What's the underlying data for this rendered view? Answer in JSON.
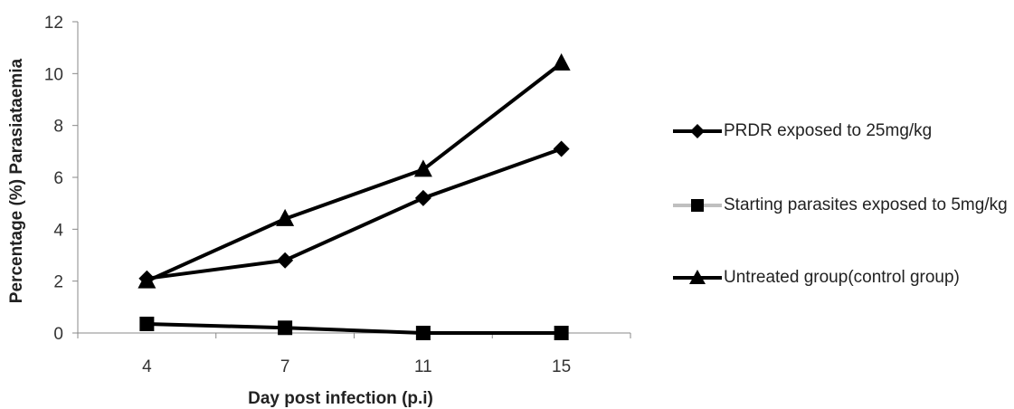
{
  "chart_data": {
    "type": "line",
    "title": "",
    "xlabel": "Day post infection (p.i)",
    "ylabel": "Percentage (%) Parasiataemia",
    "categories": [
      "4",
      "7",
      "11",
      "15"
    ],
    "ylim": [
      0,
      12
    ],
    "yticks": [
      0,
      2,
      4,
      6,
      8,
      10,
      12
    ],
    "grid": false,
    "legend_position": "right",
    "series": [
      {
        "name": "PRDR exposed to 25mg/kg",
        "values": [
          2.1,
          2.8,
          5.2,
          7.1
        ],
        "marker": "diamond",
        "color": "#000000"
      },
      {
        "name": "Starting parasites exposed to 5mg/kg",
        "values": [
          0.35,
          0.2,
          0.0,
          0.0
        ],
        "marker": "square",
        "color": "#000000",
        "legend_line_color": "#bfbfbf"
      },
      {
        "name": "Untreated group(control group)",
        "values": [
          2.0,
          4.4,
          6.3,
          10.4
        ],
        "marker": "triangle",
        "color": "#000000"
      }
    ]
  }
}
